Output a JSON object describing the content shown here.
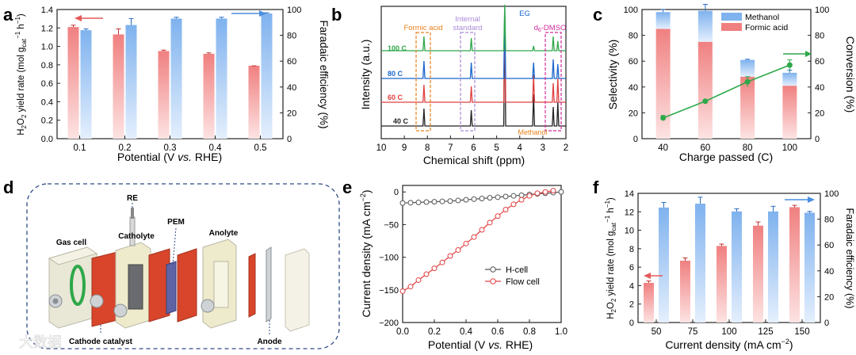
{
  "colors": {
    "red": "#f08080",
    "blue": "#7fb2ee",
    "green": "#2ea84a",
    "black": "#222222",
    "orange": "#e8801a",
    "purple": "#a98bd6",
    "magenta": "#d22a9b",
    "dashed_box": "#2e4a86"
  },
  "chart_data": [
    {
      "panel": "a",
      "type": "bar",
      "ylabel_pre": "H",
      "ylabel_sub1": "2",
      "ylabel_mid": "O",
      "ylabel_sub2": "2",
      "ylabel_post": " yield rate (mol g",
      "ylabel_sub3": "cat",
      "ylabel_sup": "−1",
      "ylabel_end": " h",
      "ylabel_sup2": "−1",
      "ylabel_close": ")",
      "y2label": "Faradaic efficiency (%)",
      "xlabel_pre": "Potential (V ",
      "xlabel_it": "vs.",
      "xlabel_post": " RHE)",
      "categories": [
        "0.1",
        "0.2",
        "0.3",
        "0.4",
        "0.5"
      ],
      "ylim": [
        0,
        1.4
      ],
      "yticks": [
        "0.0",
        "0.2",
        "0.4",
        "0.6",
        "0.8",
        "1.0",
        "1.2",
        "1.4"
      ],
      "y2lim": [
        0,
        100
      ],
      "y2ticks": [
        "0",
        "20",
        "40",
        "60",
        "80",
        "100"
      ],
      "series": [
        {
          "axis": "left",
          "values": [
            1.21,
            1.13,
            0.95,
            0.92,
            0.79
          ],
          "errors": [
            0.02,
            0.06,
            0.01,
            0.01,
            0.0
          ]
        },
        {
          "axis": "right",
          "values": [
            84,
            88,
            93,
            93,
            97
          ],
          "errors": [
            1,
            5,
            1,
            1,
            0.5
          ]
        }
      ]
    },
    {
      "panel": "b",
      "type": "line",
      "ylabel": "Intensity (a.u.)",
      "xlabel": "Chemical shift (ppm)",
      "xticks": [
        "10",
        "9",
        "8",
        "7",
        "6",
        "5",
        "4",
        "3",
        "2"
      ],
      "xlim": [
        10,
        2
      ],
      "traces": [
        "40 C",
        "60 C",
        "80 C",
        "100 C"
      ],
      "annotations": {
        "formic": "Formic acid",
        "internal1": "Internal",
        "internal2": "standard",
        "eg": "EG",
        "dmso_pre": "d",
        "dmso_sub": "6",
        "dmso_post": "-DMSO",
        "methanol": "Methanol"
      }
    },
    {
      "panel": "c",
      "type": "bar",
      "ylabel": "Selectivity (%)",
      "y2label": "Conversion (%)",
      "xlabel": "Charge passed (C)",
      "categories": [
        "40",
        "60",
        "80",
        "100"
      ],
      "ylim": [
        0,
        100
      ],
      "yticks": [
        "0",
        "20",
        "40",
        "60",
        "80",
        "100"
      ],
      "y2lim": [
        0,
        100
      ],
      "y2ticks": [
        "0",
        "20",
        "40",
        "60",
        "80",
        "100"
      ],
      "legend": [
        "Methanol",
        "Formic acid"
      ],
      "series": [
        {
          "name": "Formic acid",
          "values": [
            85,
            75,
            48,
            41
          ],
          "errors": [
            0.5,
            6,
            3,
            5
          ]
        },
        {
          "name": "Methanol",
          "values": [
            13,
            24,
            13,
            10
          ],
          "errors": [
            2,
            5,
            0.5,
            2
          ]
        }
      ],
      "conversion": {
        "values": [
          16,
          29,
          44,
          57
        ],
        "errors": [
          2,
          1,
          4,
          4
        ]
      }
    },
    {
      "panel": "e",
      "type": "line",
      "ylabel": "Current density (mA cm",
      "ylabel_sup": "−2",
      "ylabel_end": ")",
      "xlabel_pre": "Potential (V ",
      "xlabel_it": "vs.",
      "xlabel_post": " RHE)",
      "xlim": [
        0,
        1.0
      ],
      "xticks": [
        "0.0",
        "0.2",
        "0.4",
        "0.6",
        "0.8",
        "1.0"
      ],
      "ylim": [
        -200,
        10
      ],
      "yticks": [
        "0",
        "−50",
        "−100",
        "−150",
        "−200"
      ],
      "legend": [
        "H-cell",
        "Flow cell"
      ],
      "series": [
        {
          "name": "H-cell",
          "x": [
            0,
            0.05,
            0.1,
            0.15,
            0.2,
            0.25,
            0.3,
            0.35,
            0.4,
            0.45,
            0.5,
            0.55,
            0.6,
            0.65,
            0.7,
            0.75,
            0.8,
            0.85,
            0.9,
            0.95,
            1.0
          ],
          "y": [
            -17,
            -16.5,
            -16,
            -15.5,
            -15,
            -14.5,
            -14,
            -13,
            -12,
            -11,
            -10,
            -9,
            -8,
            -7,
            -6,
            -5,
            -4,
            -3,
            -2,
            -1,
            0
          ]
        },
        {
          "name": "Flow cell",
          "x": [
            0,
            0.05,
            0.1,
            0.15,
            0.2,
            0.25,
            0.3,
            0.35,
            0.4,
            0.45,
            0.5,
            0.55,
            0.6,
            0.65,
            0.7,
            0.75,
            0.8,
            0.85,
            0.9,
            0.95
          ],
          "y": [
            -152,
            -145,
            -135,
            -126,
            -117,
            -108,
            -98,
            -89,
            -79,
            -69,
            -58,
            -47,
            -37,
            -27,
            -19,
            -12,
            -6,
            -2,
            0,
            2
          ]
        }
      ]
    },
    {
      "panel": "f",
      "type": "bar",
      "ylabel_pre": "H",
      "ylabel_sub1": "2",
      "ylabel_mid": "O",
      "ylabel_sub2": "2",
      "ylabel_post": " yield rate (mol g",
      "ylabel_sub3": "cat",
      "ylabel_sup": "−1",
      "ylabel_end": " h",
      "ylabel_sup2": "−1",
      "ylabel_close": ")",
      "y2label": "Faradaic efficiency (%)",
      "xlabel": "Current density (mA cm",
      "xlabel_sup": "−2",
      "xlabel_end": ")",
      "categories": [
        "50",
        "75",
        "100",
        "125",
        "150"
      ],
      "ylim": [
        0,
        14
      ],
      "yticks": [
        "0",
        "2",
        "4",
        "6",
        "8",
        "10",
        "12",
        "14"
      ],
      "y2lim": [
        0,
        100
      ],
      "y2ticks": [
        "0",
        "20",
        "40",
        "60",
        "80",
        "100"
      ],
      "series": [
        {
          "axis": "left",
          "values": [
            4.3,
            6.7,
            8.3,
            10.5,
            12.5
          ],
          "errors": [
            0.2,
            0.3,
            0.2,
            0.4,
            0.2
          ]
        },
        {
          "axis": "right",
          "values": [
            89,
            92,
            86,
            86,
            85
          ],
          "errors": [
            4,
            5,
            2,
            4,
            1
          ]
        }
      ]
    }
  ],
  "panel_d": {
    "label": "d",
    "labels": {
      "re": "RE",
      "pem": "PEM",
      "gas_cell": "Gas cell",
      "catholyte": "Catholyte",
      "anolyte": "Anolyte",
      "cathode_catalyst": "Cathode catalyst",
      "anode": "Anode"
    },
    "watermark": "大数据"
  },
  "panel_labels": [
    "a",
    "b",
    "c",
    "e",
    "f"
  ]
}
